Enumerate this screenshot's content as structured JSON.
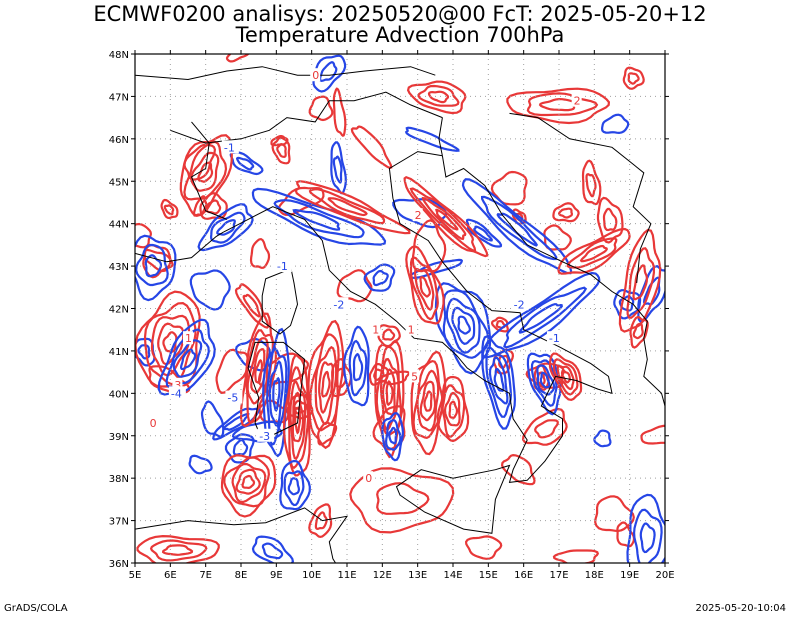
{
  "header": {
    "line1": "ECMWF0200 analisys: 20250520@00 FcT: 2025-05-20+12",
    "line2": "Temperature Advection 700hPa"
  },
  "axes": {
    "lat_labels": [
      "48N",
      "47N",
      "46N",
      "45N",
      "44N",
      "43N",
      "42N",
      "41N",
      "40N",
      "39N",
      "38N",
      "37N",
      "36N"
    ],
    "lon_labels": [
      "5E",
      "6E",
      "7E",
      "8E",
      "9E",
      "10E",
      "11E",
      "12E",
      "13E",
      "14E",
      "15E",
      "16E",
      "17E",
      "18E",
      "19E",
      "20E"
    ],
    "lat_range": [
      36,
      48
    ],
    "lon_range": [
      5,
      20
    ]
  },
  "contour_labels": [
    "0",
    "1",
    "-1",
    "2",
    "-2",
    "3",
    "-3",
    "-4",
    "5",
    "-5",
    "0",
    "1",
    "-1",
    "2",
    "-2",
    "0",
    "1",
    "-1"
  ],
  "colors": {
    "warm_advection": "#e83838",
    "cold_advection": "#2646e6",
    "coastline": "#000000",
    "grid": "#a0a0a0"
  },
  "footer": {
    "left": "GrADS/COLA",
    "right": "2025-05-20-10:04"
  }
}
